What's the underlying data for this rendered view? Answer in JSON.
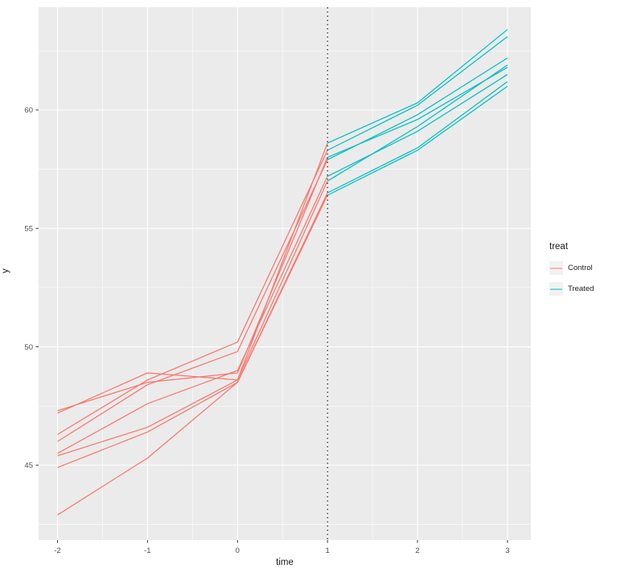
{
  "figure": {
    "background": "#FFFFFF",
    "panel_background": "#EBEBEB",
    "grid_color": "#FFFFFF",
    "tick_mark_color": "#333333",
    "tick_label_color": "#4D4D4D",
    "title_color": "#1a1a1a"
  },
  "chart_data": {
    "type": "line",
    "title": "",
    "xlabel": "time",
    "ylabel": "y",
    "x": [
      -2,
      -1,
      0,
      1,
      2,
      3
    ],
    "x_ticks": [
      -2,
      -1,
      0,
      1,
      2,
      3
    ],
    "y_ticks": [
      45,
      50,
      55,
      60
    ],
    "x_minor_ticks": [
      -1.5,
      -0.5,
      0.5,
      1.5,
      2.5
    ],
    "y_minor_ticks": [
      42.5,
      47.5,
      52.5,
      57.5,
      62.5
    ],
    "xlim": [
      -2.21,
      3.26
    ],
    "ylim": [
      41.84,
      64.34
    ],
    "grid": true,
    "legend_position": "right",
    "groups": [
      {
        "name": "Control",
        "color": "#F8766D",
        "x_span": [
          -2,
          1
        ]
      },
      {
        "name": "Treated",
        "color": "#00BFC4",
        "x_span": [
          1,
          3
        ]
      }
    ],
    "series": [
      {
        "id": "subject-1",
        "values": [
          47.3,
          48.5,
          48.9,
          58.0,
          59.6,
          61.8
        ]
      },
      {
        "id": "subject-2",
        "values": [
          47.2,
          48.9,
          48.6,
          58.6,
          60.3,
          63.4
        ]
      },
      {
        "id": "subject-3",
        "values": [
          46.3,
          48.6,
          50.2,
          58.3,
          60.2,
          63.1
        ]
      },
      {
        "id": "subject-4",
        "values": [
          46.0,
          48.4,
          49.8,
          57.9,
          59.8,
          62.2
        ]
      },
      {
        "id": "subject-5",
        "values": [
          45.5,
          47.6,
          49.0,
          57.2,
          59.1,
          61.5
        ]
      },
      {
        "id": "subject-6",
        "values": [
          45.4,
          46.6,
          48.6,
          57.0,
          59.3,
          61.9
        ]
      },
      {
        "id": "subject-7",
        "values": [
          44.9,
          46.4,
          48.5,
          56.5,
          58.4,
          61.2
        ]
      },
      {
        "id": "subject-8",
        "values": [
          42.9,
          45.3,
          48.5,
          56.4,
          58.3,
          61.0
        ]
      }
    ],
    "vline": {
      "x": 1,
      "color": "#000000",
      "style": "dotted"
    }
  },
  "legend": {
    "title": "treat",
    "key_fill": "#F2F2F2",
    "items": [
      {
        "label": "Control",
        "color": "#F8766D"
      },
      {
        "label": "Treated",
        "color": "#00BFC4"
      }
    ]
  }
}
